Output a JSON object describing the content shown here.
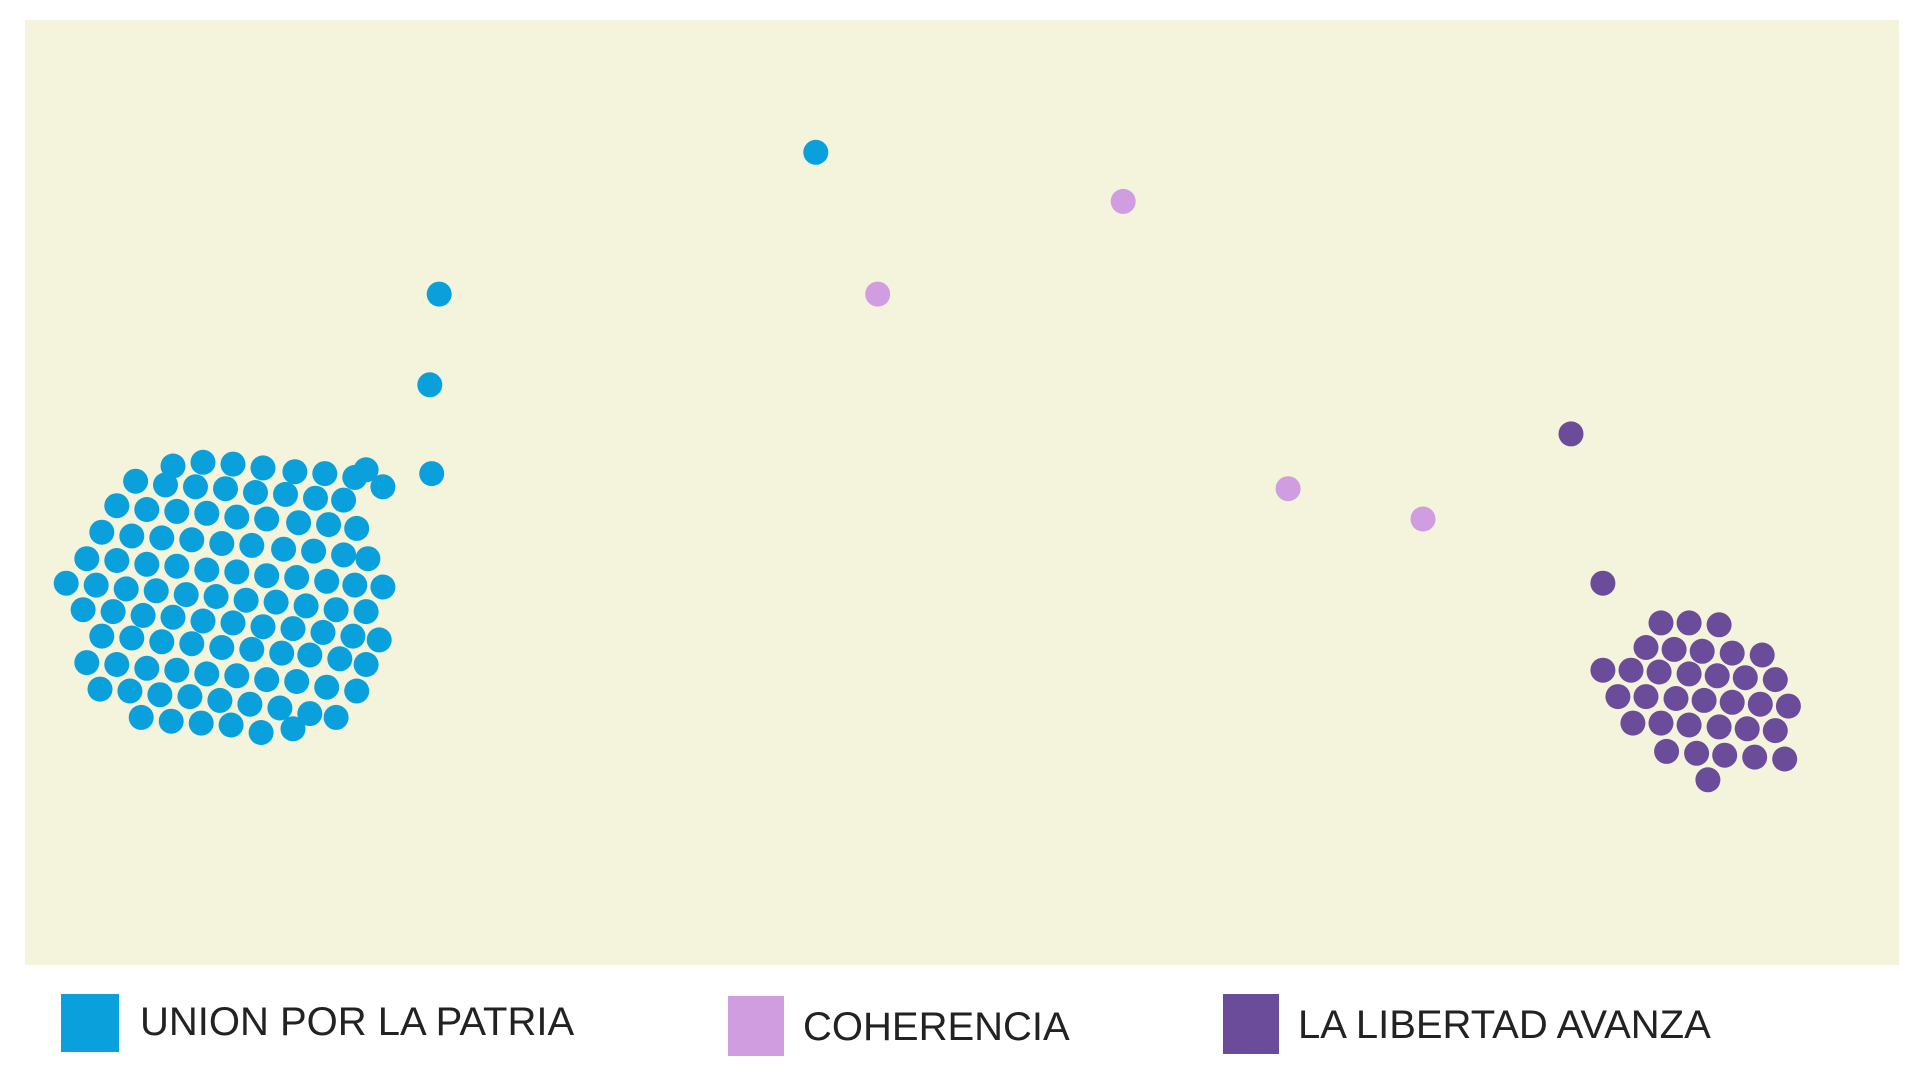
{
  "colors": {
    "plot_background": "#f4f3dc",
    "union_por_la_patria": "#0aa0dc",
    "coherencia": "#cf9de0",
    "la_libertad_avanza": "#6b4c9a"
  },
  "legend": {
    "items": [
      {
        "label": "UNION POR LA PATRIA",
        "color": "#0aa0dc"
      },
      {
        "label": "COHERENCIA",
        "color": "#cf9de0"
      },
      {
        "label": "LA LIBERTAD AVANZA",
        "color": "#6b4c9a"
      }
    ]
  },
  "chart_data": {
    "type": "scatter",
    "title": "",
    "xlabel": "",
    "ylabel": "",
    "xlim": [
      0,
      100
    ],
    "ylim": [
      0,
      100
    ],
    "grid": false,
    "legend_position": "bottom",
    "series": [
      {
        "name": "UNION POR LA PATRIA",
        "color": "#0aa0dc",
        "points": [
          [
            42.2,
            86.0
          ],
          [
            21.6,
            61.4
          ],
          [
            21.7,
            52.0
          ],
          [
            18.2,
            52.4
          ],
          [
            19.1,
            50.6
          ],
          [
            7.9,
            52.8
          ],
          [
            9.5,
            53.2
          ],
          [
            11.1,
            53.0
          ],
          [
            12.7,
            52.6
          ],
          [
            14.4,
            52.2
          ],
          [
            16.0,
            52.0
          ],
          [
            17.6,
            51.6
          ],
          [
            5.9,
            51.2
          ],
          [
            7.5,
            50.8
          ],
          [
            9.1,
            50.6
          ],
          [
            10.7,
            50.4
          ],
          [
            12.3,
            50.0
          ],
          [
            13.9,
            49.8
          ],
          [
            15.5,
            49.4
          ],
          [
            17.0,
            49.2
          ],
          [
            4.9,
            48.6
          ],
          [
            6.5,
            48.2
          ],
          [
            8.1,
            48.0
          ],
          [
            9.7,
            47.8
          ],
          [
            11.3,
            47.4
          ],
          [
            12.9,
            47.2
          ],
          [
            14.6,
            46.8
          ],
          [
            16.2,
            46.6
          ],
          [
            17.7,
            46.2
          ],
          [
            4.1,
            45.8
          ],
          [
            5.7,
            45.4
          ],
          [
            7.3,
            45.2
          ],
          [
            8.9,
            45.0
          ],
          [
            10.5,
            44.6
          ],
          [
            12.1,
            44.4
          ],
          [
            13.8,
            44.0
          ],
          [
            15.4,
            43.8
          ],
          [
            17.0,
            43.4
          ],
          [
            18.3,
            43.0
          ],
          [
            3.3,
            43.0
          ],
          [
            4.9,
            42.8
          ],
          [
            6.5,
            42.4
          ],
          [
            8.1,
            42.2
          ],
          [
            9.7,
            41.8
          ],
          [
            11.3,
            41.6
          ],
          [
            12.9,
            41.2
          ],
          [
            14.5,
            41.0
          ],
          [
            16.1,
            40.6
          ],
          [
            17.6,
            40.2
          ],
          [
            19.1,
            40.0
          ],
          [
            2.2,
            40.4
          ],
          [
            3.8,
            40.2
          ],
          [
            5.4,
            39.8
          ],
          [
            7.0,
            39.6
          ],
          [
            8.6,
            39.2
          ],
          [
            10.2,
            39.0
          ],
          [
            11.8,
            38.6
          ],
          [
            13.4,
            38.4
          ],
          [
            15.0,
            38.0
          ],
          [
            16.6,
            37.6
          ],
          [
            18.2,
            37.4
          ],
          [
            3.1,
            37.6
          ],
          [
            4.7,
            37.4
          ],
          [
            6.3,
            37.0
          ],
          [
            7.9,
            36.8
          ],
          [
            9.5,
            36.4
          ],
          [
            11.1,
            36.2
          ],
          [
            12.7,
            35.8
          ],
          [
            14.3,
            35.6
          ],
          [
            15.9,
            35.2
          ],
          [
            17.5,
            34.8
          ],
          [
            18.9,
            34.4
          ],
          [
            4.1,
            34.8
          ],
          [
            5.7,
            34.6
          ],
          [
            7.3,
            34.2
          ],
          [
            8.9,
            34.0
          ],
          [
            10.5,
            33.6
          ],
          [
            12.1,
            33.4
          ],
          [
            13.7,
            33.0
          ],
          [
            15.2,
            32.8
          ],
          [
            16.8,
            32.4
          ],
          [
            18.2,
            31.8
          ],
          [
            3.3,
            32.0
          ],
          [
            4.9,
            31.8
          ],
          [
            6.5,
            31.4
          ],
          [
            8.1,
            31.2
          ],
          [
            9.7,
            30.8
          ],
          [
            11.3,
            30.6
          ],
          [
            12.9,
            30.2
          ],
          [
            14.5,
            30.0
          ],
          [
            16.1,
            29.4
          ],
          [
            17.7,
            29.0
          ],
          [
            4.0,
            29.2
          ],
          [
            5.6,
            29.0
          ],
          [
            7.2,
            28.6
          ],
          [
            8.8,
            28.4
          ],
          [
            10.4,
            28.0
          ],
          [
            12.0,
            27.6
          ],
          [
            13.6,
            27.2
          ],
          [
            15.2,
            26.6
          ],
          [
            16.6,
            26.2
          ],
          [
            6.2,
            26.2
          ],
          [
            7.8,
            25.8
          ],
          [
            9.4,
            25.6
          ],
          [
            11.0,
            25.4
          ],
          [
            12.6,
            24.6
          ],
          [
            14.3,
            25.0
          ],
          [
            22.1,
            71.0
          ]
        ]
      },
      {
        "name": "COHERENCIA",
        "color": "#cf9de0",
        "points": [
          [
            45.5,
            71.0
          ],
          [
            58.6,
            80.8
          ],
          [
            67.4,
            50.4
          ],
          [
            74.6,
            47.2
          ]
        ]
      },
      {
        "name": "LA LIBERTAD AVANZA",
        "color": "#6b4c9a",
        "points": [
          [
            82.5,
            56.2
          ],
          [
            84.2,
            40.4
          ],
          [
            87.3,
            36.2
          ],
          [
            88.8,
            36.2
          ],
          [
            90.4,
            36.0
          ],
          [
            86.5,
            33.6
          ],
          [
            88.0,
            33.4
          ],
          [
            89.5,
            33.2
          ],
          [
            91.1,
            33.0
          ],
          [
            92.7,
            32.8
          ],
          [
            84.2,
            31.2
          ],
          [
            85.7,
            31.2
          ],
          [
            87.2,
            31.0
          ],
          [
            88.8,
            30.8
          ],
          [
            90.3,
            30.6
          ],
          [
            91.8,
            30.4
          ],
          [
            93.4,
            30.2
          ],
          [
            85.0,
            28.4
          ],
          [
            86.5,
            28.4
          ],
          [
            88.1,
            28.2
          ],
          [
            89.6,
            28.0
          ],
          [
            91.1,
            27.8
          ],
          [
            92.6,
            27.6
          ],
          [
            94.1,
            27.4
          ],
          [
            85.8,
            25.6
          ],
          [
            87.3,
            25.6
          ],
          [
            88.8,
            25.4
          ],
          [
            90.4,
            25.2
          ],
          [
            91.9,
            25.0
          ],
          [
            93.4,
            24.8
          ],
          [
            87.6,
            22.6
          ],
          [
            89.2,
            22.4
          ],
          [
            90.7,
            22.2
          ],
          [
            92.3,
            22.0
          ],
          [
            93.9,
            21.8
          ],
          [
            89.8,
            19.6
          ]
        ]
      }
    ]
  }
}
